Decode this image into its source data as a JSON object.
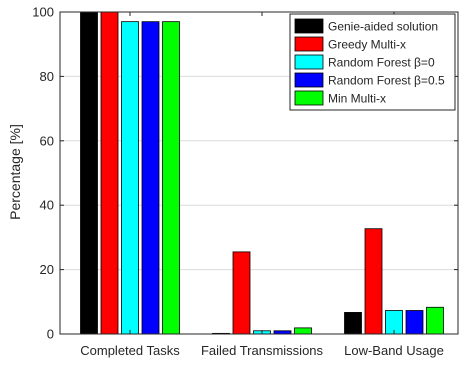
{
  "chart_data": {
    "type": "bar",
    "categories": [
      "Completed Tasks",
      "Failed Transmissions",
      "Low-Band Usage"
    ],
    "series": [
      {
        "name": "Genie-aided solution",
        "color": "#000000",
        "values": [
          100,
          0.2,
          6.7
        ]
      },
      {
        "name": "Greedy Multi-x",
        "color": "#ff0000",
        "values": [
          100,
          25.5,
          32.7
        ]
      },
      {
        "name": "Random Forest β=0",
        "color": "#00ffff",
        "values": [
          97,
          1.0,
          7.3
        ]
      },
      {
        "name": "Random Forest β=0.5",
        "color": "#0000ff",
        "values": [
          97,
          1.0,
          7.3
        ]
      },
      {
        "name": "Min Multi-x",
        "color": "#00ff00",
        "values": [
          97,
          1.9,
          8.3
        ]
      }
    ],
    "title": "",
    "xlabel": "",
    "ylabel": "Percentage [%]",
    "ylim": [
      0,
      100
    ],
    "yticks": [
      0,
      20,
      40,
      60,
      80,
      100
    ],
    "grid": true,
    "legend_position": "top-right"
  }
}
